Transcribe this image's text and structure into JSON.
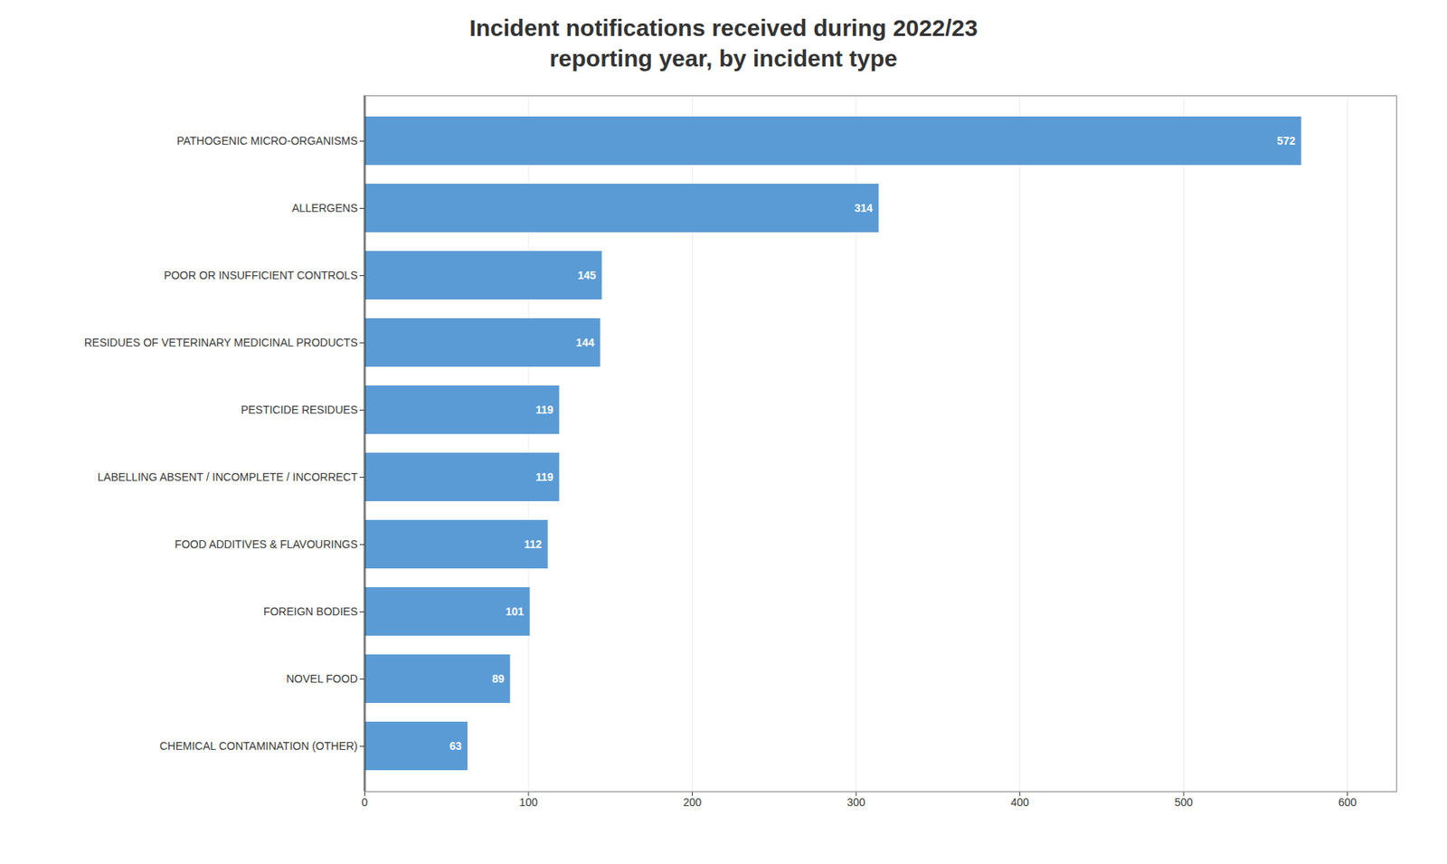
{
  "chart_data": {
    "type": "bar",
    "orientation": "horizontal",
    "title": "Incident notifications received during 2022/23\nreporting year, by incident type",
    "categories": [
      "PATHOGENIC MICRO-ORGANISMS",
      "ALLERGENS",
      "POOR OR INSUFFICIENT CONTROLS",
      "RESIDUES OF VETERINARY MEDICINAL PRODUCTS",
      "PESTICIDE RESIDUES",
      "LABELLING ABSENT / INCOMPLETE / INCORRECT",
      "FOOD ADDITIVES & FLAVOURINGS",
      "FOREIGN BODIES",
      "NOVEL FOOD",
      "CHEMICAL CONTAMINATION (OTHER)"
    ],
    "values": [
      572,
      314,
      145,
      144,
      119,
      119,
      112,
      101,
      89,
      63
    ],
    "color": "#5b9bd5",
    "xlim": [
      0,
      630
    ],
    "xticks": [
      0,
      100,
      200,
      300,
      400,
      500,
      600
    ],
    "grid": true,
    "data_labels": true
  }
}
